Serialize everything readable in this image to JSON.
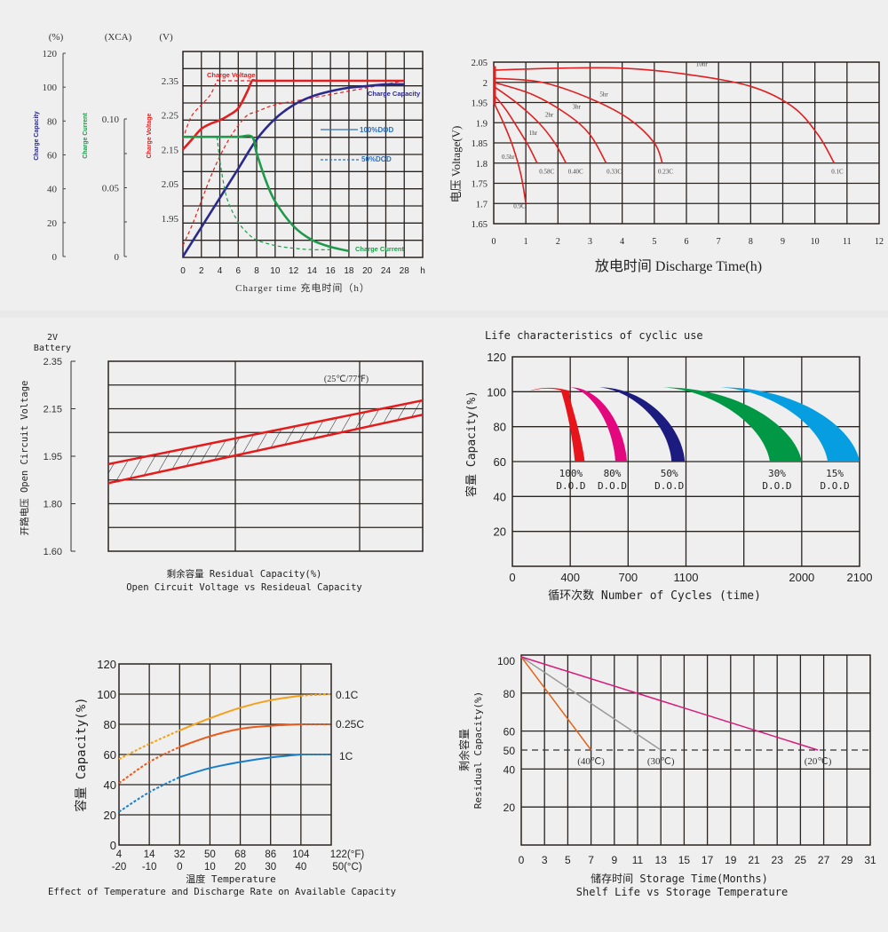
{
  "chart_data": [
    {
      "id": "charge",
      "type": "line",
      "title": "",
      "xlabel": "Charger time  充电时间（h）",
      "x_ticks": [
        "0",
        "2",
        "4",
        "6",
        "8",
        "10",
        "12",
        "14",
        "16",
        "18",
        "20",
        "24",
        "28",
        "h"
      ],
      "axes": [
        {
          "unit": "(%)",
          "label": "Charge Capacity",
          "color": "#2b2a8c",
          "ticks": [
            "120",
            "100",
            "80",
            "60",
            "40",
            "20",
            "0"
          ],
          "range": [
            0,
            120
          ]
        },
        {
          "unit": "(XCA)",
          "label": "Charge Current",
          "color": "#1f9a4a",
          "ticks": [
            "0.10",
            "0.05",
            "0"
          ],
          "range": [
            0,
            0.1
          ]
        },
        {
          "unit": "(V)",
          "label": "Charge Voltage",
          "color": "#e02020",
          "ticks": [
            "2.35",
            "2.25",
            "2.15",
            "2.05",
            "1.95"
          ],
          "range": [
            1.85,
            2.45
          ]
        }
      ],
      "legend": [
        {
          "label": "100%DOD",
          "style": "solid",
          "color": "#2f6fb8"
        },
        {
          "label": "50%DOD",
          "style": "dashed",
          "color": "#2f6fb8"
        }
      ],
      "annotations": [
        "Charge Voltage",
        "Charge Capacity",
        "Charge Current"
      ],
      "series": [
        {
          "name": "Charge Voltage 100%DOD",
          "axis": "V",
          "style": "solid",
          "color": "#e02020",
          "x": [
            0,
            1,
            2,
            3,
            4,
            5,
            6,
            7,
            7.5,
            8,
            10,
            14,
            20,
            28
          ],
          "y": [
            2.15,
            2.18,
            2.21,
            2.225,
            2.235,
            2.25,
            2.27,
            2.32,
            2.35,
            2.35,
            2.35,
            2.35,
            2.35,
            2.35
          ]
        },
        {
          "name": "Charge Voltage 50%DOD",
          "axis": "V",
          "style": "dashed",
          "color": "#e02020",
          "x": [
            0,
            0.5,
            1,
            2,
            3,
            3.7,
            4,
            6,
            8,
            12
          ],
          "y": [
            2.18,
            2.22,
            2.25,
            2.28,
            2.31,
            2.35,
            2.35,
            2.35,
            2.35,
            2.35
          ]
        },
        {
          "name": "Charge Voltage 50%DOD (float)",
          "axis": "V",
          "style": "dashed",
          "color": "#e02020",
          "x": [
            0,
            1,
            2,
            3,
            4,
            5,
            6,
            7,
            8,
            10,
            14,
            20,
            28
          ],
          "y": [
            1.87,
            1.93,
            2.0,
            2.07,
            2.13,
            2.18,
            2.22,
            2.25,
            2.26,
            2.28,
            2.3,
            2.33,
            2.35
          ]
        },
        {
          "name": "Charge Capacity 100%DOD",
          "axis": "%",
          "style": "solid",
          "color": "#2b2a8c",
          "x": [
            0,
            2,
            4,
            6,
            8,
            10,
            12,
            14,
            16,
            18,
            20,
            24,
            28
          ],
          "y": [
            0,
            17,
            34,
            51,
            68,
            80,
            88,
            93,
            96,
            98,
            99,
            100,
            100
          ]
        },
        {
          "name": "Charge Current 100%DOD",
          "axis": "XCA",
          "style": "solid",
          "color": "#1f9a4a",
          "x": [
            0,
            2,
            4,
            6,
            7.5,
            8,
            9,
            10,
            12,
            14,
            16,
            18
          ],
          "y": [
            0.087,
            0.087,
            0.087,
            0.087,
            0.087,
            0.075,
            0.055,
            0.04,
            0.022,
            0.012,
            0.007,
            0.004
          ]
        },
        {
          "name": "Charge Current 50%DOD",
          "axis": "XCA",
          "style": "dashed",
          "color": "#1f9a4a",
          "x": [
            3.7,
            4,
            4.5,
            5,
            6,
            7,
            8,
            10,
            12,
            14,
            16
          ],
          "y": [
            0.087,
            0.07,
            0.05,
            0.038,
            0.025,
            0.017,
            0.012,
            0.008,
            0.006,
            0.005,
            0.005
          ]
        }
      ]
    },
    {
      "id": "discharge",
      "type": "line",
      "xlabel": "放电时间 Discharge Time(h)",
      "ylabel": "电压 Voltage(V)",
      "xlim": [
        0,
        12
      ],
      "ylim": [
        1.65,
        2.05
      ],
      "x_ticks": [
        "0",
        "1",
        "2",
        "3",
        "4",
        "5",
        "6",
        "7",
        "8",
        "9",
        "10",
        "11",
        "12"
      ],
      "y_ticks": [
        "2.05",
        "2",
        "1.95",
        "1.9",
        "1.85",
        "1.8",
        "1.75",
        "1.7",
        "1.65"
      ],
      "series": [
        {
          "name": "0.5hr",
          "end_label": "0.9C",
          "x": [
            0,
            0.3,
            0.6,
            0.85,
            1.0
          ],
          "y": [
            1.95,
            1.9,
            1.84,
            1.77,
            1.7
          ]
        },
        {
          "name": "1hr",
          "end_label": "0.58C",
          "x": [
            0,
            0.4,
            0.8,
            1.1,
            1.35
          ],
          "y": [
            1.97,
            1.93,
            1.88,
            1.84,
            1.8
          ]
        },
        {
          "name": "2hr",
          "end_label": "0.40C",
          "x": [
            0,
            0.7,
            1.4,
            1.9,
            2.25
          ],
          "y": [
            1.99,
            1.95,
            1.9,
            1.85,
            1.8
          ]
        },
        {
          "name": "3hr",
          "end_label": "0.33C",
          "x": [
            0,
            1.2,
            2.3,
            3.0,
            3.5
          ],
          "y": [
            2.0,
            1.97,
            1.92,
            1.87,
            1.8
          ]
        },
        {
          "name": "5hr",
          "end_label": "0.23C",
          "x": [
            0,
            1.5,
            3.0,
            4.2,
            5.0,
            5.25
          ],
          "y": [
            2.01,
            2.0,
            1.96,
            1.91,
            1.85,
            1.8
          ]
        },
        {
          "name": "10hr",
          "end_label": "0.1C",
          "x": [
            0,
            2,
            4,
            6,
            8,
            9.3,
            10.1,
            10.6
          ],
          "y": [
            2.03,
            2.035,
            2.035,
            2.02,
            1.99,
            1.94,
            1.87,
            1.8
          ]
        }
      ]
    },
    {
      "id": "ocv",
      "type": "area",
      "title": "Open Circuit Voltage vs Resideual Capacity",
      "header": [
        "2V",
        "Battery"
      ],
      "xlabel": "剩余容量   Residual Capacity(%)",
      "ylabel": "开路电压 Open Circuit Voltage",
      "y_ticks": [
        "2.35",
        "2.15",
        "1.95",
        "1.80",
        "1.60"
      ],
      "annotation": "(25℃/77℉)",
      "band": {
        "x": [
          0,
          100
        ],
        "upper": [
          1.925,
          2.185
        ],
        "lower": [
          1.865,
          2.125
        ]
      }
    },
    {
      "id": "cycle",
      "type": "area",
      "title": "Life characteristics of cyclic use",
      "xlabel": "循环次数 Number of Cycles (time)",
      "ylabel": "容量 Capacity(%)",
      "x_ticks": [
        "0",
        "400",
        "700",
        "1100",
        "",
        "2000",
        "2100"
      ],
      "y_ticks": [
        "120",
        "100",
        "80",
        "60",
        "40",
        "20"
      ],
      "ylim": [
        0,
        120
      ],
      "series": [
        {
          "name": "100%",
          "label2": "D.O.D",
          "color": "#e8141c",
          "start": 0.3,
          "peak": 0.6,
          "end_inner": 1.08,
          "end_outer": 1.25
        },
        {
          "name": "80%",
          "label2": "D.O.D",
          "color": "#e4087e",
          "start": 1.0,
          "peak": 1.0,
          "end_inner": 1.78,
          "end_outer": 1.98
        },
        {
          "name": "50%",
          "label2": "D.O.D",
          "color": "#1c1c80",
          "start": 1.5,
          "peak": 1.5,
          "end_inner": 2.75,
          "end_outer": 2.98
        },
        {
          "name": "30%",
          "label2": "D.O.D",
          "color": "#009845",
          "start": 2.6,
          "peak": 2.6,
          "end_inner": 4.45,
          "end_outer": 5.0
        },
        {
          "name": "15%",
          "label2": "D.O.D",
          "color": "#069ee0",
          "start": 3.6,
          "peak": 3.6,
          "end_inner": 5.45,
          "end_outer": 6.0
        }
      ]
    },
    {
      "id": "temperature",
      "type": "line",
      "title": "Effect of Temperature and Discharge Rate on Available Capacity",
      "xlabel": "温度 Temperature",
      "ylabel": "容量 Capacity(%)",
      "ylim": [
        0,
        120
      ],
      "x_ticks_f": [
        "4",
        "14",
        "32",
        "50",
        "68",
        "86",
        "104",
        "122(°F)"
      ],
      "x_ticks_c": [
        "-20",
        "-10",
        "0",
        "10",
        "20",
        "30",
        "40",
        "50(°C)"
      ],
      "y_ticks": [
        "120",
        "100",
        "80",
        "60",
        "40",
        "20",
        "0"
      ],
      "series": [
        {
          "name": "0.1C",
          "color": "#f4a11c",
          "x": [
            -20,
            -10,
            0,
            10,
            20,
            30,
            40,
            50
          ],
          "y": [
            57,
            67,
            76,
            84,
            91,
            96,
            99,
            100
          ]
        },
        {
          "name": "0.25C",
          "color": "#ea5a1a",
          "x": [
            -20,
            -10,
            0,
            10,
            20,
            30,
            40,
            50
          ],
          "y": [
            41,
            55,
            65,
            72,
            77,
            79,
            80,
            80
          ]
        },
        {
          "name": "1C",
          "color": "#1a7fc8",
          "x": [
            -20,
            -10,
            0,
            10,
            20,
            30,
            40,
            50
          ],
          "y": [
            22,
            35,
            45,
            51,
            55,
            58,
            60,
            60
          ]
        }
      ],
      "dashed_below_c": 0,
      "dashed_above_c": 42
    },
    {
      "id": "shelf",
      "type": "line",
      "title": "Shelf Life vs Storage Temperature",
      "xlabel": "储存时间 Storage Time(Months)",
      "ylabel": [
        "剩余容量",
        "Residual Capacity(%)"
      ],
      "xlim": [
        0,
        30
      ],
      "ylim": [
        0,
        100
      ],
      "x_ticks": [
        "0",
        "3",
        "5",
        "7",
        "9",
        "11",
        "13",
        "15",
        "17",
        "19",
        "21",
        "23",
        "25",
        "27",
        "29",
        "31"
      ],
      "y_ticks": [
        {
          "v": 100,
          "t": "100"
        },
        {
          "v": 80,
          "t": "80"
        },
        {
          "v": 60,
          "t": "60"
        },
        {
          "v": 50,
          "t": "50"
        },
        {
          "v": 40,
          "t": "40"
        },
        {
          "v": 20,
          "t": "20"
        }
      ],
      "reference_line": 50,
      "series": [
        {
          "name": "(40℃)",
          "color": "#e0651c",
          "x": [
            0,
            6
          ],
          "y": [
            103,
            50
          ]
        },
        {
          "name": "(30℃)",
          "color": "#9a9a9a",
          "x": [
            0,
            12
          ],
          "y": [
            103,
            50
          ]
        },
        {
          "name": "(20℃)",
          "color": "#d81b7a",
          "x": [
            0,
            25.5
          ],
          "y": [
            103,
            50
          ]
        }
      ]
    }
  ]
}
